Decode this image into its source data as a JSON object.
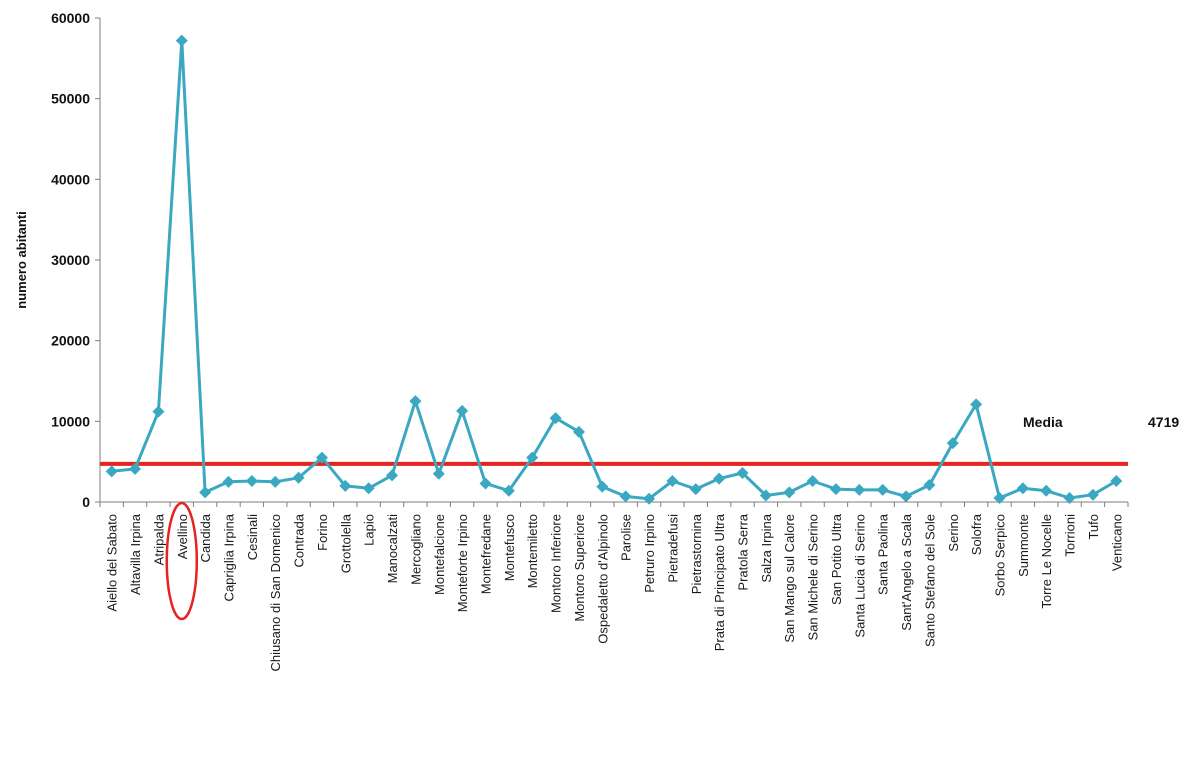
{
  "chart_data": {
    "type": "line",
    "ylabel": "numero abitanti",
    "ylim": [
      0,
      60000
    ],
    "yticks": [
      0,
      10000,
      20000,
      30000,
      40000,
      50000,
      60000
    ],
    "ytick_labels": [
      "0",
      "10000",
      "20000",
      "30000",
      "40000",
      "50000",
      "60000"
    ],
    "grid": false,
    "highlight_category": "Avellino",
    "categories": [
      "Aiello del Sabato",
      "Altavilla Irpina",
      "Atripalda",
      "Avellino",
      "Candida",
      "Capriglia Irpina",
      "Cesinali",
      "Chiusano di San Domenico",
      "Contrada",
      "Forino",
      "Grottolella",
      "Lapio",
      "Manocalzati",
      "Mercogliano",
      "Montefalcione",
      "Monteforte Irpino",
      "Montefredane",
      "Montefusco",
      "Montemiletto",
      "Montoro Inferiore",
      "Montoro Superiore",
      "Ospedaletto d'Alpinolo",
      "Parolise",
      "Petruro Irpino",
      "Pietradefusi",
      "Pietrastornina",
      "Prata di Principato Ultra",
      "Pratola Serra",
      "Salza Irpina",
      "San Mango sul Calore",
      "San Michele di Serino",
      "San Potito Ultra",
      "Santa Lucia di Serino",
      "Santa Paolina",
      "Sant'Angelo a Scala",
      "Santo Stefano del Sole",
      "Serino",
      "Solofra",
      "Sorbo Serpico",
      "Summonte",
      "Torre Le Nocelle",
      "Torrioni",
      "Tufo",
      "Venticano"
    ],
    "series": [
      {
        "name": "",
        "color": "#3aa8c1",
        "values": [
          3800,
          4100,
          11200,
          57200,
          1200,
          2500,
          2600,
          2500,
          3000,
          5500,
          2000,
          1700,
          3300,
          12500,
          3500,
          11300,
          2300,
          1400,
          5500,
          10400,
          8700,
          1900,
          700,
          400,
          2600,
          1600,
          2900,
          3600,
          800,
          1200,
          2600,
          1600,
          1500,
          1500,
          700,
          2100,
          7300,
          12100,
          500,
          1700,
          1400,
          500,
          900,
          2600
        ]
      }
    ],
    "reference_line": {
      "label": "Media",
      "value": 4719,
      "value_text": "4719",
      "color": "#e8231f"
    }
  }
}
